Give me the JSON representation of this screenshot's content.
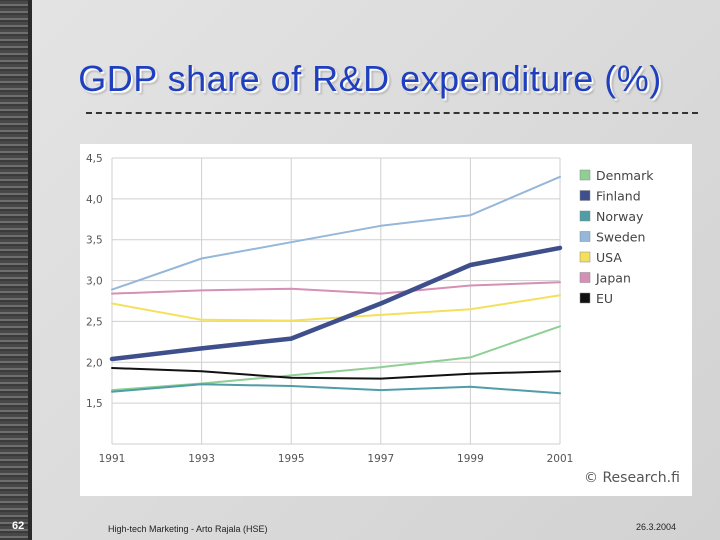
{
  "slide": {
    "title": "GDP share of R&D expenditure (%)",
    "page_number": "62",
    "footer_text": "High-tech Marketing - Arto Rajala (HSE)",
    "date": "26.3.2004"
  },
  "chart_data": {
    "type": "line",
    "title": "GDP share of R&D expenditure (%)",
    "xlabel": "",
    "ylabel": "",
    "x": [
      1991,
      1993,
      1995,
      1997,
      1999,
      2001
    ],
    "x_tick_labels": [
      "1991",
      "1993",
      "1995",
      "1997",
      "1999",
      "2001"
    ],
    "y_tick_values": [
      1.5,
      2.0,
      2.5,
      3.0,
      3.5,
      4.0,
      4.5
    ],
    "y_tick_labels": [
      "1,5",
      "2,0",
      "2,5",
      "3,0",
      "3,5",
      "4,0",
      "4,5"
    ],
    "ylim": [
      1.0,
      4.5
    ],
    "grid": true,
    "legend_position": "right",
    "credit": "© Research.fi",
    "series": [
      {
        "name": "Denmark",
        "color": "#8fcf95",
        "values": [
          1.66,
          1.74,
          1.84,
          1.94,
          2.06,
          2.44
        ]
      },
      {
        "name": "Finland",
        "color": "#3e4f8c",
        "values": [
          2.04,
          2.17,
          2.29,
          2.72,
          3.19,
          3.4
        ]
      },
      {
        "name": "Norway",
        "color": "#4f9da6",
        "values": [
          1.64,
          1.73,
          1.71,
          1.66,
          1.7,
          1.62
        ]
      },
      {
        "name": "Sweden",
        "color": "#95b7d9",
        "values": [
          2.89,
          3.27,
          3.47,
          3.67,
          3.8,
          4.27
        ]
      },
      {
        "name": "USA",
        "color": "#f4e05a",
        "values": [
          2.72,
          2.52,
          2.51,
          2.58,
          2.65,
          2.82
        ]
      },
      {
        "name": "Japan",
        "color": "#d68fb5",
        "values": [
          2.84,
          2.88,
          2.9,
          2.84,
          2.94,
          2.98
        ]
      },
      {
        "name": "EU",
        "color": "#111111",
        "values": [
          1.93,
          1.89,
          1.81,
          1.8,
          1.86,
          1.89
        ]
      }
    ]
  }
}
